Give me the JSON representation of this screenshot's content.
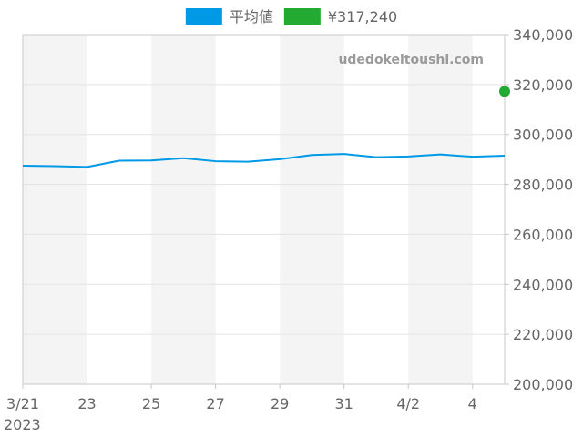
{
  "chart_data": {
    "type": "line",
    "x": [
      "2023-03-21",
      "2023-03-22",
      "2023-03-23",
      "2023-03-24",
      "2023-03-25",
      "2023-03-26",
      "2023-03-27",
      "2023-03-28",
      "2023-03-29",
      "2023-03-30",
      "2023-03-31",
      "2023-04-01",
      "2023-04-02",
      "2023-04-03",
      "2023-04-04",
      "2023-04-05"
    ],
    "series": [
      {
        "name": "平均値",
        "color": "#0099e6",
        "values": [
          287500,
          287300,
          287000,
          289500,
          289600,
          290500,
          289300,
          289100,
          290100,
          291800,
          292200,
          290900,
          291200,
          292000,
          291100,
          291500
        ]
      },
      {
        "name": "¥317,240",
        "color": "#22aa33",
        "points": [
          {
            "x": "2023-04-05",
            "y": 317240
          }
        ]
      }
    ],
    "x_tick_labels": [
      "3/21",
      "23",
      "25",
      "27",
      "29",
      "31",
      "4/2",
      "4"
    ],
    "x_year_label": "2023",
    "y_tick_labels": [
      "340,000",
      "320,000",
      "300,000",
      "280,000",
      "260,000",
      "240,000",
      "220,000",
      "200,000"
    ],
    "ylim": [
      200000,
      340000
    ],
    "grid": true,
    "legend": "top-center",
    "title": "",
    "xlabel": "",
    "ylabel": ""
  },
  "watermark": "udedokeitoushi.com"
}
